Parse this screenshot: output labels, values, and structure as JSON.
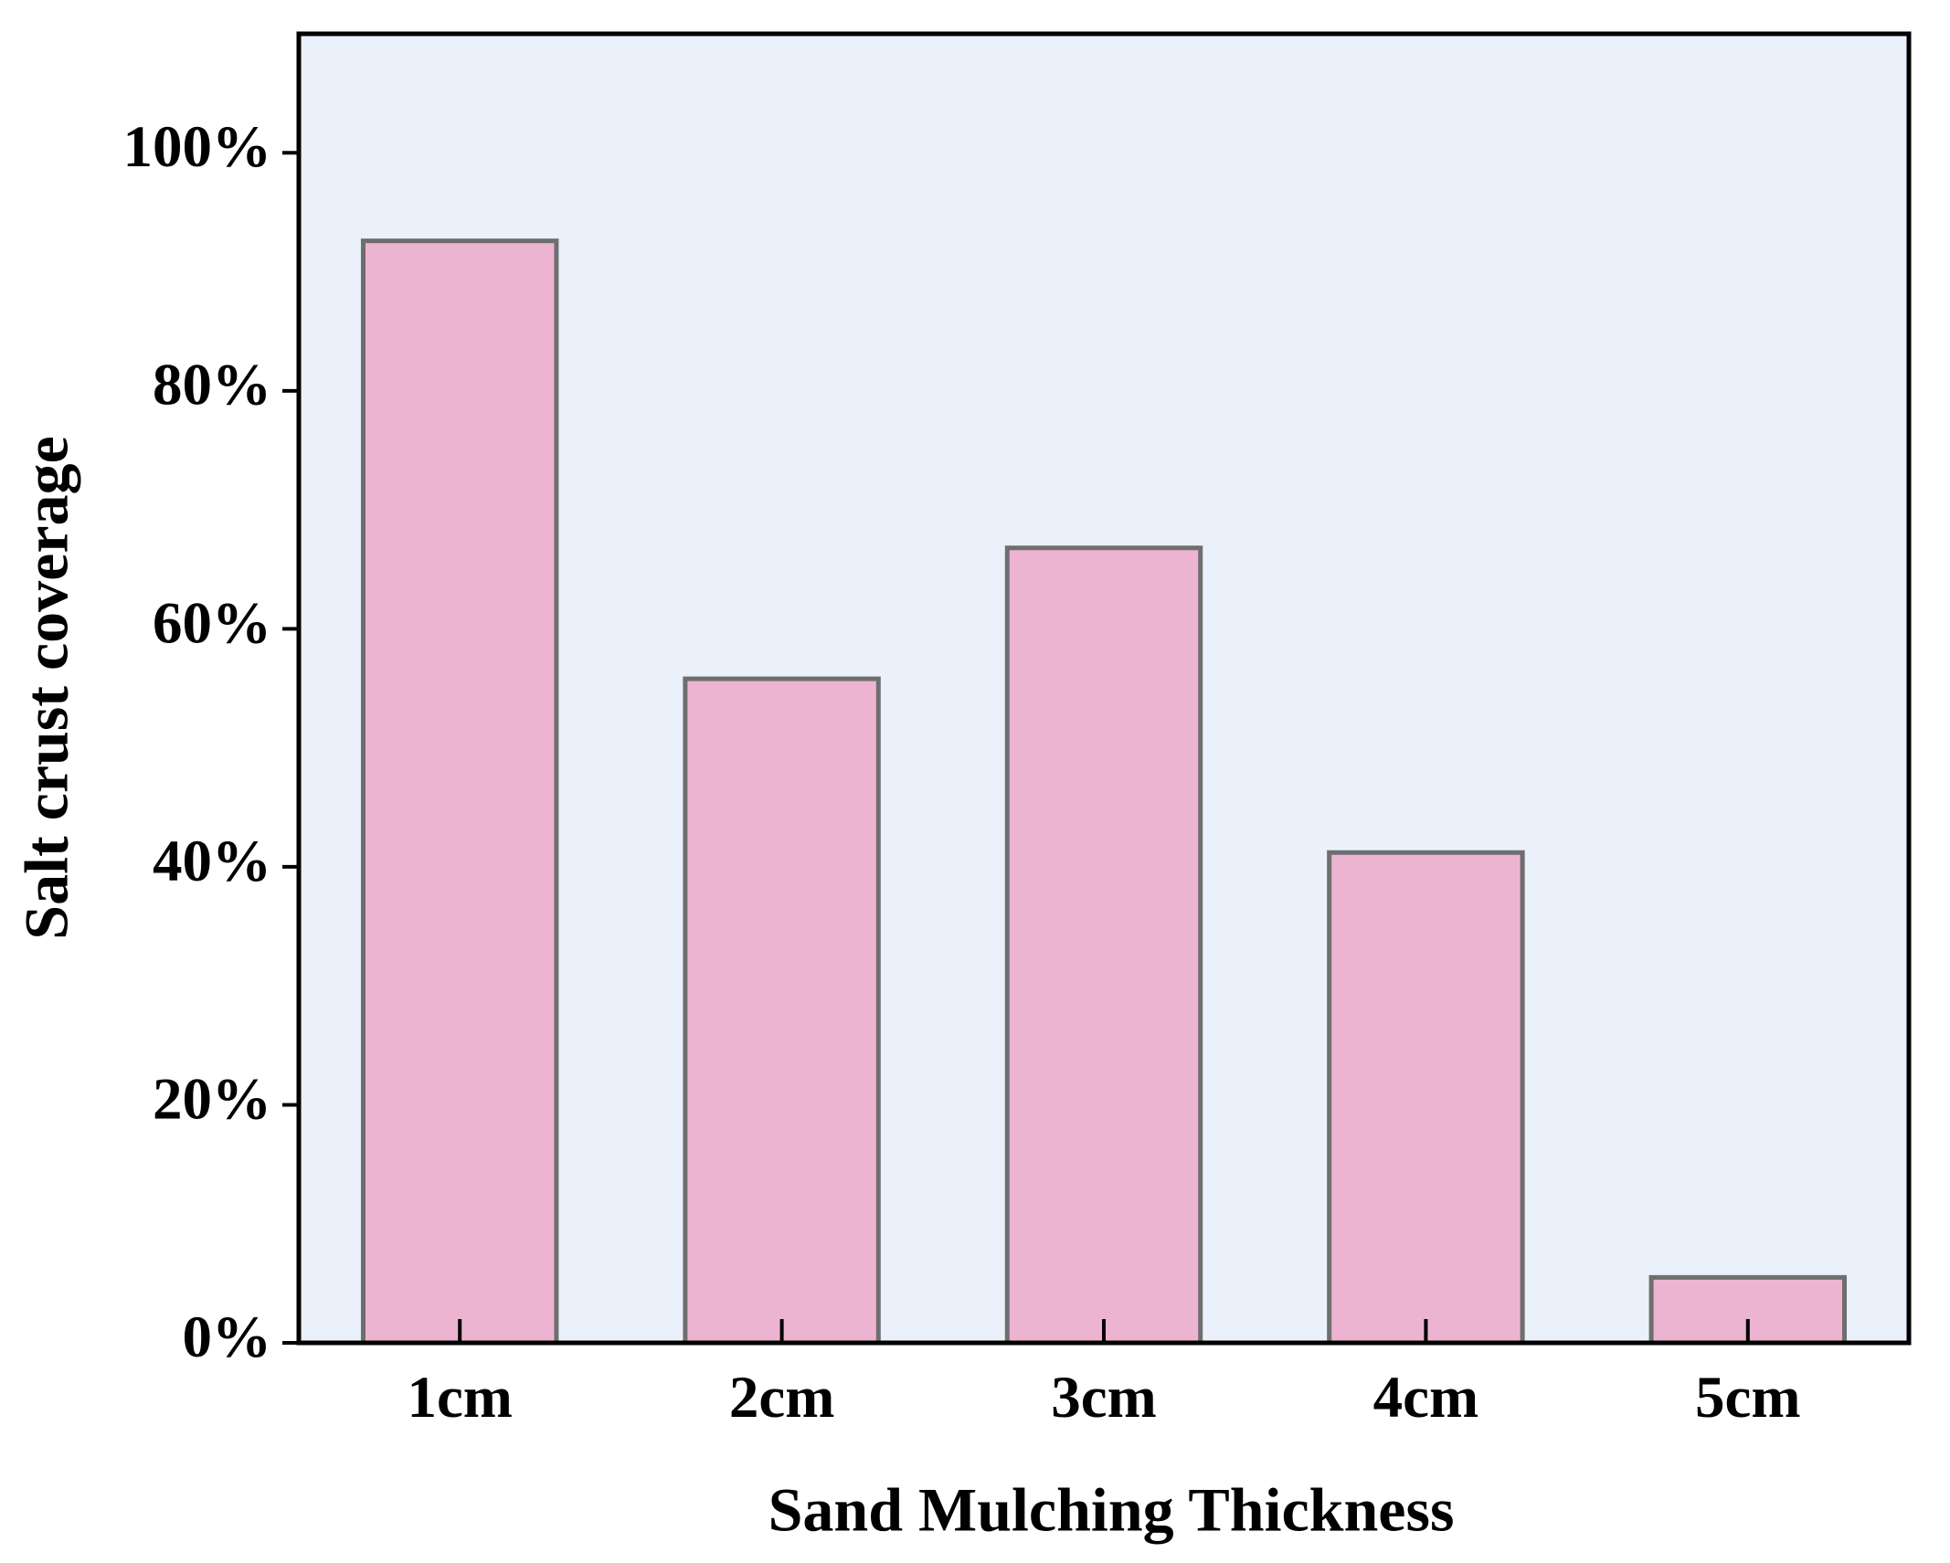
{
  "chart_data": {
    "type": "bar",
    "x_label": "Sand Mulching Thickness",
    "y_label": "Salt crust coverage",
    "categories": [
      "1cm",
      "2cm",
      "3cm",
      "4cm",
      "5cm"
    ],
    "values": [
      92.6,
      55.8,
      66.8,
      41.2,
      5.5
    ],
    "color": "#ecb4d0",
    "edge_color": "#6e6e6e",
    "background": "#eaf1fb",
    "ylim": [
      0,
      110
    ],
    "yticks": [
      {
        "value": 0,
        "label": "0%"
      },
      {
        "value": 20,
        "label": "20%"
      },
      {
        "value": 40,
        "label": "40%"
      },
      {
        "value": 60,
        "label": "60%"
      },
      {
        "value": 80,
        "label": "80%"
      },
      {
        "value": 100,
        "label": "100%"
      }
    ],
    "grid": false
  }
}
